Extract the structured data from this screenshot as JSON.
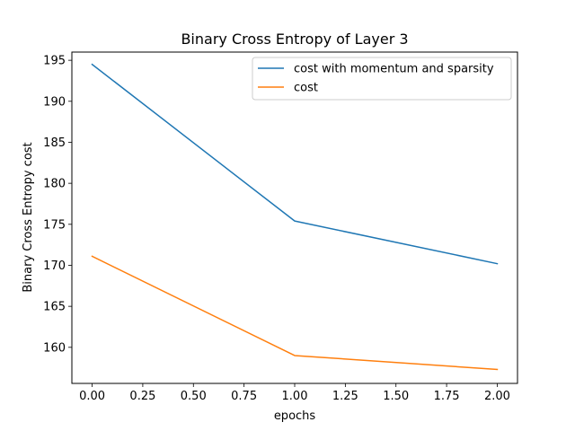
{
  "chart_data": {
    "type": "line",
    "title": "Binary Cross Entropy of Layer 3",
    "xlabel": "epochs",
    "ylabel": "Binary Cross Entropy cost",
    "x": [
      0.0,
      1.0,
      2.0
    ],
    "xlim": [
      -0.1,
      2.1
    ],
    "ylim": [
      155.6,
      196.0
    ],
    "xticks": [
      0.0,
      0.25,
      0.5,
      0.75,
      1.0,
      1.25,
      1.5,
      1.75,
      2.0
    ],
    "xtick_labels": [
      "0.00",
      "0.25",
      "0.50",
      "0.75",
      "1.00",
      "1.25",
      "1.50",
      "1.75",
      "2.00"
    ],
    "yticks": [
      160,
      165,
      170,
      175,
      180,
      185,
      190,
      195
    ],
    "ytick_labels": [
      "160",
      "165",
      "170",
      "175",
      "180",
      "185",
      "190",
      "195"
    ],
    "grid": false,
    "legend_position": "top-right",
    "series": [
      {
        "name": "cost with momentum and sparsity",
        "color": "#1f77b4",
        "values": [
          194.5,
          175.4,
          170.2
        ]
      },
      {
        "name": "cost",
        "color": "#ff7f0e",
        "values": [
          171.1,
          159.0,
          157.3
        ]
      }
    ]
  }
}
